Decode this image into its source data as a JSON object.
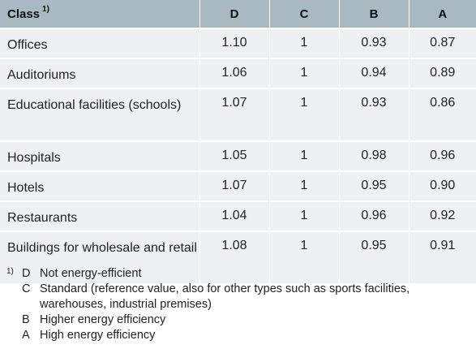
{
  "table": {
    "headers": {
      "class": "Class",
      "class_note": "1)",
      "d": "D",
      "c": "C",
      "b": "B",
      "a": "A"
    },
    "rows": [
      {
        "label": "Offices",
        "d": "1.10",
        "c": "1",
        "b": "0.93",
        "a": "0.87"
      },
      {
        "label": "Auditoriums",
        "d": "1.06",
        "c": "1",
        "b": "0.94",
        "a": "0.89"
      },
      {
        "label": "Educational facilities (schools)",
        "d": "1.07",
        "c": "1",
        "b": "0.93",
        "a": "0.86"
      },
      {
        "label": "Hospitals",
        "d": "1.05",
        "c": "1",
        "b": "0.98",
        "a": "0.96"
      },
      {
        "label": "Hotels",
        "d": "1.07",
        "c": "1",
        "b": "0.95",
        "a": "0.90"
      },
      {
        "label": "Restaurants",
        "d": "1.04",
        "c": "1",
        "b": "0.96",
        "a": "0.92"
      },
      {
        "label": "Buildings for wholesale and retail",
        "d": "1.08",
        "c": "1",
        "b": "0.95",
        "a": "0.91"
      }
    ]
  },
  "footnote": {
    "marker": "1)",
    "items": [
      {
        "key": "D",
        "text": "Not energy-efficient"
      },
      {
        "key": "C",
        "text": "Standard (reference value, also for other types such as sports facilities, warehouses, industrial premises)"
      },
      {
        "key": "B",
        "text": "Higher energy efficiency"
      },
      {
        "key": "A",
        "text": "High energy efficiency"
      }
    ]
  },
  "colors": {
    "header_bg": "#a9b9c2",
    "row_bg": "#eef0f1"
  }
}
